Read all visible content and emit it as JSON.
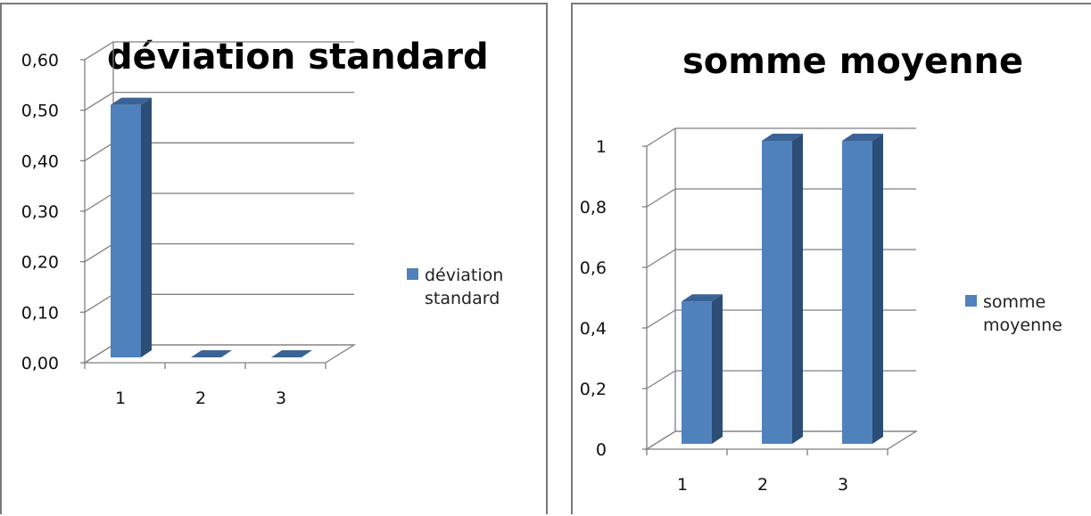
{
  "colors": {
    "bar_front": "#4f81bd",
    "bar_side": "#2c4d75",
    "bar_top": "#3a6395",
    "gridline": "#808080",
    "axis": "#7f7f7f"
  },
  "chart_data": [
    {
      "type": "bar",
      "title": "déviation standard",
      "categories": [
        "1",
        "2",
        "3"
      ],
      "series": [
        {
          "name": "déviation standard",
          "values": [
            0.5,
            0.0,
            0.0
          ]
        }
      ],
      "ylim": [
        0,
        0.6
      ],
      "yticks": [
        0.0,
        0.1,
        0.2,
        0.3,
        0.4,
        0.5,
        0.6
      ],
      "ytick_labels": [
        "0,00",
        "0,10",
        "0,20",
        "0,30",
        "0,40",
        "0,50",
        "0,60"
      ],
      "legend_lines": [
        "déviation",
        "standard"
      ],
      "legend_position": "right",
      "grid": true,
      "style": "3d-column"
    },
    {
      "type": "bar",
      "title": "somme moyenne",
      "categories": [
        "1",
        "2",
        "3"
      ],
      "series": [
        {
          "name": "somme moyenne",
          "values": [
            0.47,
            1.0,
            1.0
          ]
        }
      ],
      "ylim": [
        0,
        1
      ],
      "yticks": [
        0,
        0.2,
        0.4,
        0.6,
        0.8,
        1
      ],
      "ytick_labels": [
        "0",
        "0,2",
        "0,4",
        "0,6",
        "0,8",
        "1"
      ],
      "legend_lines": [
        "somme",
        "moyenne"
      ],
      "legend_position": "right",
      "grid": true,
      "style": "3d-column"
    }
  ]
}
